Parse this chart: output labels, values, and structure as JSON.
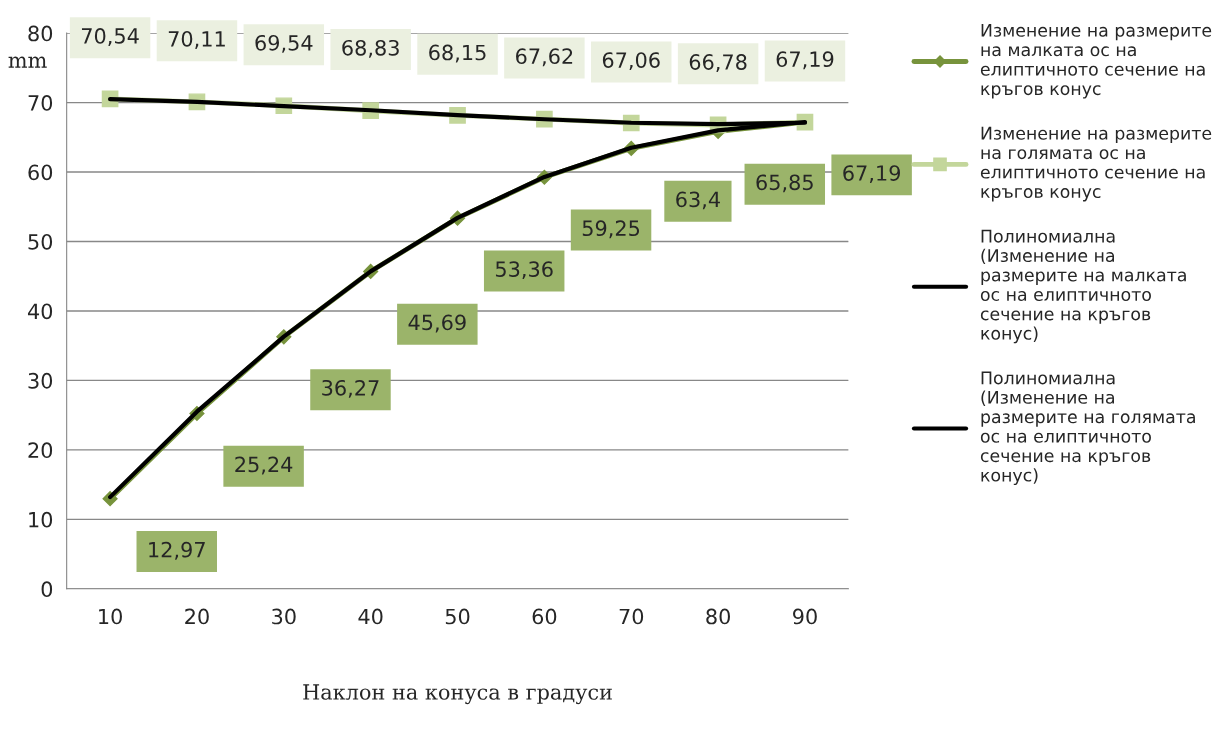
{
  "chart_data": {
    "type": "line",
    "ylabel": "mm",
    "xlabel": "Наклон на конуса в градуси",
    "categories": [
      "10",
      "20",
      "30",
      "40",
      "50",
      "60",
      "70",
      "80",
      "90"
    ],
    "ylim": [
      0,
      80
    ],
    "yticks": [
      0,
      10,
      20,
      30,
      40,
      50,
      60,
      70,
      80
    ],
    "grid": "y",
    "legend": "right",
    "series": [
      {
        "name": "Изменение на размерите на малката ос на елиптичното сечение на кръгов конус",
        "color": "#77933c",
        "marker": "diamond",
        "values": [
          12.97,
          25.24,
          36.27,
          45.69,
          53.36,
          59.25,
          63.4,
          65.85,
          67.19
        ],
        "value_labels": [
          "12,97",
          "25,24",
          "36,27",
          "45,69",
          "53,36",
          "59,25",
          "63,4",
          "65,85",
          "67,19"
        ]
      },
      {
        "name": "Изменение на размерите на голямата ос на елиптичното сечение на кръгов конус",
        "color": "#c3d69b",
        "marker": "square",
        "values": [
          70.54,
          70.11,
          69.54,
          68.83,
          68.15,
          67.62,
          67.06,
          66.78,
          67.19
        ],
        "value_labels": [
          "70,54",
          "70,11",
          "69,54",
          "68,83",
          "68,15",
          "67,62",
          "67,06",
          "66,78",
          "67,19"
        ]
      },
      {
        "name": "Полиномиална (Изменение на размерите на малката ос на елиптичното сечение на кръгов конус)",
        "color": "#000000",
        "type": "line",
        "marker": "none",
        "x": [
          "10",
          "20",
          "30",
          "40",
          "50",
          "60",
          "70",
          "80",
          "90"
        ],
        "values": [
          13.2,
          25.5,
          36.3,
          45.7,
          53.4,
          59.3,
          63.5,
          66.0,
          67.2
        ]
      },
      {
        "name": "Полиномиална (Изменение на размерите на голямата ос на елиптичното сечение на кръгов конус)",
        "color": "#000000",
        "type": "line",
        "marker": "none",
        "x": [
          "10",
          "20",
          "30",
          "40",
          "50",
          "60",
          "70",
          "80",
          "90"
        ],
        "values": [
          70.5,
          70.1,
          69.5,
          68.9,
          68.2,
          67.6,
          67.1,
          66.9,
          67.1
        ]
      }
    ]
  }
}
